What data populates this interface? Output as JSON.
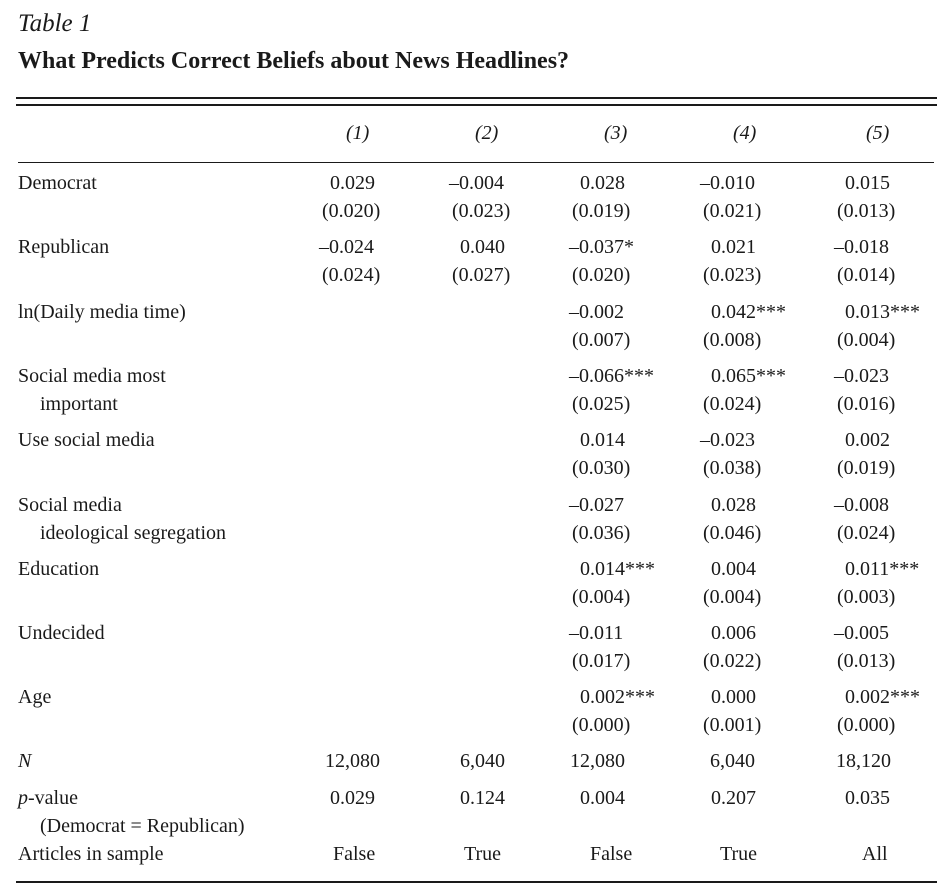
{
  "table": {
    "label": "Table 1",
    "title": "What Predicts Correct Beliefs about News Headlines?",
    "columns": [
      "(1)",
      "(2)",
      "(3)",
      "(4)",
      "(5)"
    ],
    "rows": [
      {
        "label": [
          "Democrat"
        ],
        "coef": [
          "0.029",
          "–0.004",
          "0.028",
          "–0.010",
          "0.015"
        ],
        "se": [
          "(0.020)",
          "(0.023)",
          "(0.019)",
          "(0.021)",
          "(0.013)"
        ]
      },
      {
        "label": [
          "Republican"
        ],
        "coef": [
          "–0.024",
          "0.040",
          "–0.037*",
          "0.021",
          "–0.018"
        ],
        "se": [
          "(0.024)",
          "(0.027)",
          "(0.020)",
          "(0.023)",
          "(0.014)"
        ]
      },
      {
        "label": [
          "ln(Daily media time)"
        ],
        "coef": [
          "",
          "",
          "–0.002",
          "0.042***",
          "0.013***"
        ],
        "se": [
          "",
          "",
          "(0.007)",
          "(0.008)",
          "(0.004)"
        ]
      },
      {
        "label": [
          "Social media most",
          "important"
        ],
        "coef": [
          "",
          "",
          "–0.066***",
          "0.065***",
          "–0.023"
        ],
        "se": [
          "",
          "",
          "(0.025)",
          "(0.024)",
          "(0.016)"
        ]
      },
      {
        "label": [
          "Use social media"
        ],
        "coef": [
          "",
          "",
          "0.014",
          "–0.023",
          "0.002"
        ],
        "se": [
          "",
          "",
          "(0.030)",
          "(0.038)",
          "(0.019)"
        ]
      },
      {
        "label": [
          "Social media",
          "ideological segregation"
        ],
        "coef": [
          "",
          "",
          "–0.027",
          "0.028",
          "–0.008"
        ],
        "se": [
          "",
          "",
          "(0.036)",
          "(0.046)",
          "(0.024)"
        ]
      },
      {
        "label": [
          "Education"
        ],
        "coef": [
          "",
          "",
          "0.014***",
          "0.004",
          "0.011***"
        ],
        "se": [
          "",
          "",
          "(0.004)",
          "(0.004)",
          "(0.003)"
        ]
      },
      {
        "label": [
          "Undecided"
        ],
        "coef": [
          "",
          "",
          "–0.011",
          "0.006",
          "–0.005"
        ],
        "se": [
          "",
          "",
          "(0.017)",
          "(0.022)",
          "(0.013)"
        ]
      },
      {
        "label": [
          "Age"
        ],
        "coef": [
          "",
          "",
          "0.002***",
          "0.000",
          "0.002***"
        ],
        "se": [
          "",
          "",
          "(0.000)",
          "(0.001)",
          "(0.000)"
        ]
      }
    ],
    "n_row": {
      "label": "N",
      "values": [
        "12,080",
        "6,040",
        "12,080",
        "6,040",
        "18,120"
      ]
    },
    "pvalue_row": {
      "label_italic": "p",
      "label_rest": "-value",
      "label_sub": "(Democrat = Republican)",
      "values": [
        "0.029",
        "0.124",
        "0.004",
        "0.207",
        "0.035"
      ]
    },
    "articles_row": {
      "label": "Articles in sample",
      "values": [
        "False",
        "True",
        "False",
        "True",
        "All"
      ]
    }
  }
}
